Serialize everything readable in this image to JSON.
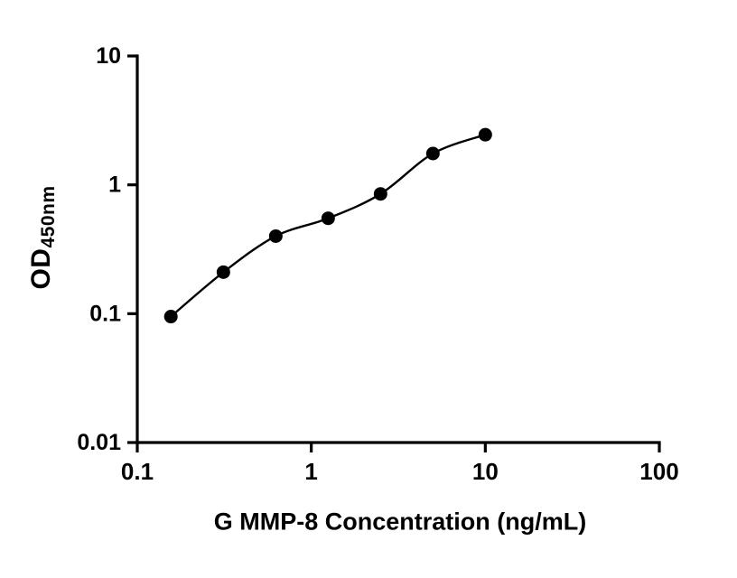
{
  "chart": {
    "xlabel": "G MMP-8 Concentration (ng/mL)",
    "ylabel_main": "OD",
    "ylabel_sub": "450nm"
  },
  "chart_data": {
    "type": "scatter",
    "title": "",
    "xlabel": "G MMP-8 Concentration (ng/mL)",
    "ylabel": "OD450nm",
    "xscale": "log",
    "yscale": "log",
    "xlim": [
      0.1,
      100
    ],
    "ylim": [
      0.01,
      10
    ],
    "x": [
      0.156,
      0.3125,
      0.625,
      1.25,
      2.5,
      5,
      10
    ],
    "y": [
      0.095,
      0.21,
      0.4,
      0.55,
      0.85,
      1.75,
      2.45
    ],
    "line_through_points": true,
    "x_ticks": [
      0.1,
      1,
      10,
      100
    ],
    "x_tick_labels": [
      "0.1",
      "1",
      "10",
      "100"
    ],
    "y_ticks": [
      0.01,
      0.1,
      1,
      10
    ],
    "y_tick_labels": [
      "0.01",
      "0.1",
      "1",
      "10"
    ],
    "marker_color": "#000000",
    "line_color": "#000000",
    "axis_color": "#000000",
    "grid": "off",
    "legend": "none"
  }
}
